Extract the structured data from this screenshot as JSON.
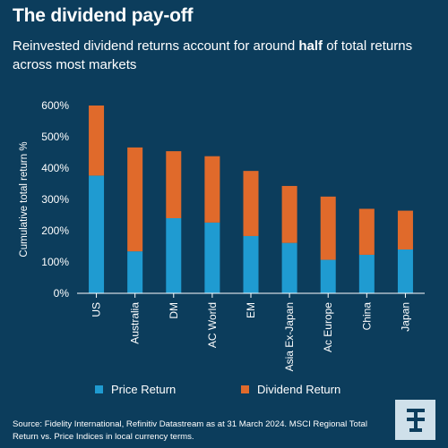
{
  "header": {
    "title": "The dividend pay-off",
    "subtitle_pre": "Reinvested dividend returns account for around ",
    "subtitle_bold": "half",
    "subtitle_post": " of total returns across most markets"
  },
  "chart_data": {
    "type": "bar",
    "stacked": true,
    "categories": [
      "US",
      "Australia",
      "DM",
      "AC World",
      "EM",
      "Asia Ex-Japan",
      "Ac Europe",
      "China",
      "Japan"
    ],
    "series": [
      {
        "name": "Price Return",
        "color": "#1f9bd1",
        "values": [
          376,
          134,
          240,
          226,
          183,
          161,
          107,
          123,
          140
        ]
      },
      {
        "name": "Dividend Return",
        "color": "#e06a2b",
        "values": [
          224,
          332,
          214,
          212,
          208,
          182,
          202,
          147,
          124
        ]
      }
    ],
    "totals": [
      600,
      466,
      454,
      438,
      391,
      343,
      309,
      270,
      264
    ],
    "ylabel": "Cumulative total return %",
    "ylim": [
      0,
      600
    ],
    "yticks": [
      "0%",
      "100%",
      "200%",
      "300%",
      "400%",
      "500%",
      "600%"
    ],
    "legend_position": "bottom"
  },
  "footer": {
    "source": "Source: Fidelity International, Refinitiv Datastream as at 31 March 2024. MSCI Regional Total Return vs. Price Indices in local currency terms.",
    "logo_icon": "fidelity-logo-icon"
  }
}
